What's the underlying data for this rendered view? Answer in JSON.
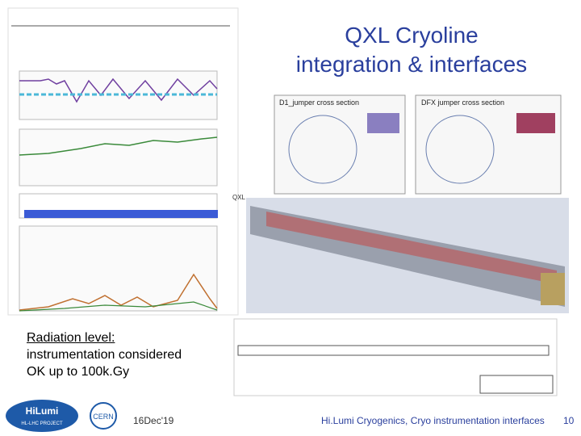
{
  "title": {
    "lines": [
      "QXL Cryoline",
      "integration & interfaces"
    ]
  },
  "body": {
    "heading": "Radiation level:",
    "lines": [
      "instrumentation considered",
      "OK up to 100k.Gy"
    ]
  },
  "figures": {
    "d1_label": "D1_jumper cross section",
    "dfx_label": "DFX jumper cross section",
    "qxl_label": "QXL"
  },
  "logos": {
    "hilumi": "HiLumi",
    "hilumi_sub": "HL-LHC PROJECT",
    "cern": "CERN"
  },
  "footer": {
    "date": "16Dec'19",
    "text": "Hi.Lumi Cryogenics, Cryo instrumentation interfaces",
    "page": "10"
  }
}
